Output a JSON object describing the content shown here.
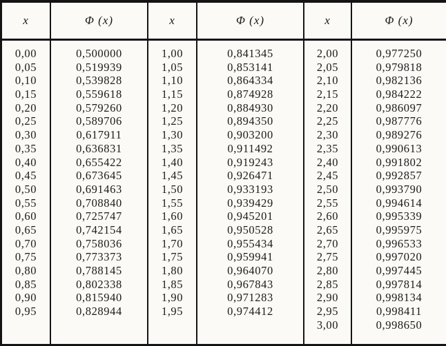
{
  "table": {
    "description": "Standard normal cumulative distribution function table, Phi(x), comma decimal notation",
    "columns": [
      {
        "header": "x",
        "values": [
          "0,00",
          "0,05",
          "0,10",
          "0,15",
          "0,20",
          "0,25",
          "0,30",
          "0,35",
          "0,40",
          "0,45",
          "0,50",
          "0,55",
          "0,60",
          "0,65",
          "0,70",
          "0,75",
          "0,80",
          "0,85",
          "0,90",
          "0,95"
        ]
      },
      {
        "header": "Φ (x)",
        "values": [
          "0,500000",
          "0,519939",
          "0,539828",
          "0,559618",
          "0,579260",
          "0,589706",
          "0,617911",
          "0,636831",
          "0,655422",
          "0,673645",
          "0,691463",
          "0,708840",
          "0,725747",
          "0,742154",
          "0,758036",
          "0,773373",
          "0,788145",
          "0,802338",
          "0,815940",
          "0,828944"
        ]
      },
      {
        "header": "x",
        "values": [
          "1,00",
          "1,05",
          "1,10",
          "1,15",
          "1,20",
          "1,25",
          "1,30",
          "1,35",
          "1,40",
          "1,45",
          "1,50",
          "1,55",
          "1,60",
          "1,65",
          "1,70",
          "1,75",
          "1,80",
          "1,85",
          "1,90",
          "1,95"
        ]
      },
      {
        "header": "Φ (x)",
        "values": [
          "0,841345",
          "0,853141",
          "0,864334",
          "0,874928",
          "0,884930",
          "0,894350",
          "0,903200",
          "0,911492",
          "0,919243",
          "0,926471",
          "0,933193",
          "0,939429",
          "0,945201",
          "0,950528",
          "0,955434",
          "0,959941",
          "0,964070",
          "0,967843",
          "0,971283",
          "0,974412"
        ]
      },
      {
        "header": "x",
        "values": [
          "2,00",
          "2,05",
          "2,10",
          "2,15",
          "2,20",
          "2,25",
          "2,30",
          "2,35",
          "2,40",
          "2,45",
          "2,50",
          "2,55",
          "2,60",
          "2,65",
          "2,70",
          "2,75",
          "2,80",
          "2,85",
          "2,90",
          "2,95",
          "3,00"
        ]
      },
      {
        "header": "Φ (x)",
        "values": [
          "0,977250",
          "0,979818",
          "0,982136",
          "0,984222",
          "0,986097",
          "0,987776",
          "0,989276",
          "0,990613",
          "0,991802",
          "0,992857",
          "0,993790",
          "0,994614",
          "0,995339",
          "0,995975",
          "0,996533",
          "0,997020",
          "0,997445",
          "0,997814",
          "0,998134",
          "0,998411",
          "0,998650"
        ]
      }
    ]
  }
}
